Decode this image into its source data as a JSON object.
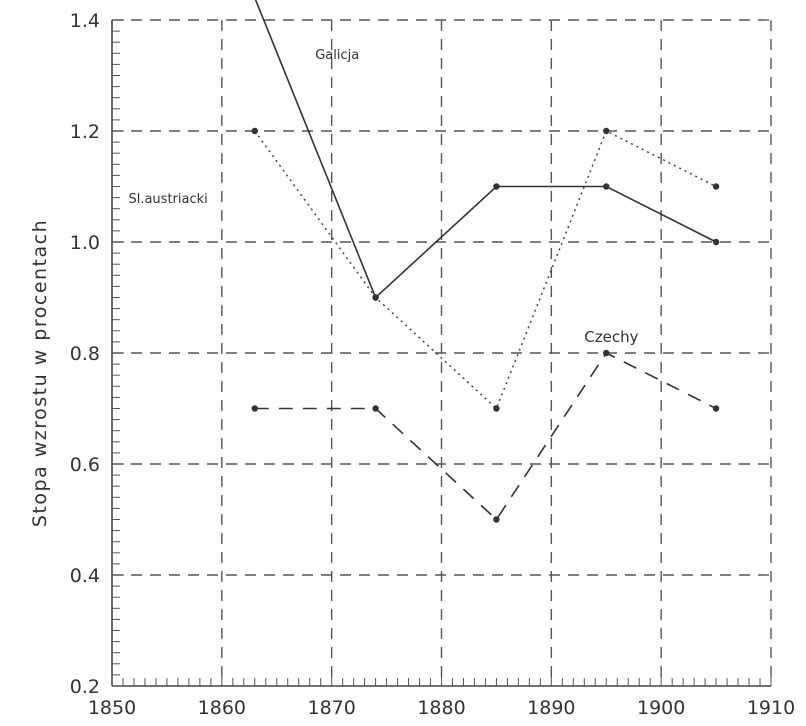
{
  "chart_data": {
    "type": "line",
    "title": "",
    "xlabel": "",
    "ylabel": "Stopa wzrostu w procentach",
    "xlim": [
      1850,
      1910
    ],
    "ylim": [
      0.2,
      1.4
    ],
    "x_ticks": [
      "1850",
      "1860",
      "1870",
      "1880",
      "1890",
      "1900",
      "1910"
    ],
    "y_ticks": [
      "0.2",
      "0.4",
      "0.6",
      "0.8",
      "1.0",
      "1.2",
      "1.4"
    ],
    "grid": true,
    "series": [
      {
        "name": "Galicja",
        "style": "solid",
        "points": [
          [
            1863,
            1.44
          ],
          [
            1874,
            0.9
          ],
          [
            1885,
            1.1
          ],
          [
            1895,
            1.1
          ],
          [
            1905,
            1.0
          ]
        ]
      },
      {
        "name": "Sl.austriacki",
        "style": "dotted",
        "points": [
          [
            1863,
            1.2
          ],
          [
            1874,
            0.9
          ],
          [
            1885,
            0.7
          ],
          [
            1895,
            1.2
          ],
          [
            1905,
            1.1
          ]
        ]
      },
      {
        "name": "Czechy",
        "style": "dashed",
        "points": [
          [
            1863,
            0.7
          ],
          [
            1874,
            0.7
          ],
          [
            1885,
            0.5
          ],
          [
            1895,
            0.8
          ],
          [
            1905,
            0.7
          ]
        ]
      }
    ],
    "annotations": [
      {
        "text": "Galicja",
        "x": 1868.5,
        "y": 1.33
      },
      {
        "text": "Sl.austriacki",
        "x": 1851.5,
        "y": 1.07
      },
      {
        "text": "Czechy",
        "x": 1893,
        "y": 0.82
      }
    ]
  }
}
